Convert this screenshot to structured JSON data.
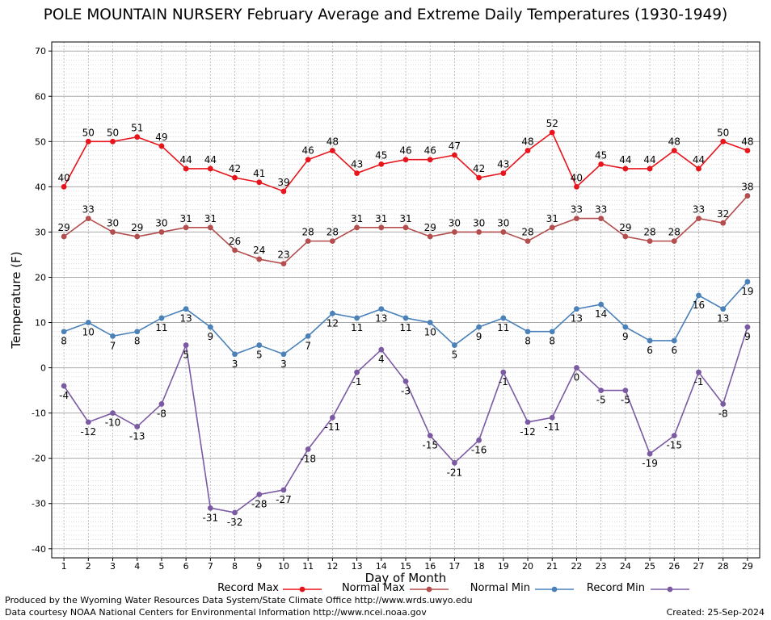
{
  "chart_data": {
    "type": "line",
    "title": "POLE MOUNTAIN NURSERY February Average and Extreme Daily Temperatures (1930-1949)",
    "xlabel": "Day of Month",
    "ylabel": "Temperature (F)",
    "x": [
      1,
      2,
      3,
      4,
      5,
      6,
      7,
      8,
      9,
      10,
      11,
      12,
      13,
      14,
      15,
      16,
      17,
      18,
      19,
      20,
      21,
      22,
      23,
      24,
      25,
      26,
      27,
      28,
      29
    ],
    "xlim": [
      0.5,
      29.5
    ],
    "ylim": [
      -42,
      72
    ],
    "yticks": [
      -40,
      -30,
      -20,
      -10,
      0,
      10,
      20,
      30,
      40,
      50,
      60,
      70
    ],
    "grid": true,
    "legend_position": "bottom",
    "series": [
      {
        "name": "Record Max",
        "color": "#e8141c",
        "label_pos": "above",
        "values": [
          40,
          50,
          50,
          51,
          49,
          44,
          44,
          42,
          41,
          39,
          46,
          48,
          43,
          45,
          46,
          46,
          47,
          42,
          43,
          48,
          52,
          40,
          45,
          44,
          44,
          48,
          44,
          50,
          48
        ]
      },
      {
        "name": "Normal Max",
        "color": "#b44d4d",
        "label_pos": "above",
        "values": [
          29,
          33,
          30,
          29,
          30,
          31,
          31,
          26,
          24,
          23,
          28,
          28,
          31,
          31,
          31,
          29,
          30,
          30,
          30,
          28,
          31,
          33,
          33,
          29,
          28,
          28,
          33,
          32,
          38
        ]
      },
      {
        "name": "Normal Min",
        "color": "#4a81b9",
        "label_pos": "below",
        "values": [
          8,
          10,
          7,
          8,
          11,
          13,
          9,
          3,
          5,
          3,
          7,
          12,
          11,
          13,
          11,
          10,
          5,
          9,
          11,
          8,
          8,
          13,
          14,
          9,
          6,
          6,
          16,
          13,
          19
        ]
      },
      {
        "name": "Record Min",
        "color": "#7b5aa3",
        "label_pos": "below",
        "values": [
          -4,
          -12,
          -10,
          -13,
          -8,
          5,
          -31,
          -32,
          -28,
          -27,
          -18,
          -11,
          -1,
          4,
          -3,
          -15,
          -21,
          -16,
          -1,
          -12,
          -11,
          0,
          -5,
          -5,
          -19,
          -15,
          -1,
          -8,
          9
        ]
      }
    ]
  },
  "footer": {
    "credit_line_1": "Produced by the Wyoming Water Resources Data System/State Climate Office http://www.wrds.uwyo.edu",
    "credit_line_2": "Data courtesy NOAA National Centers for Environmental Information http://www.ncei.noaa.gov",
    "created": "Created:  25-Sep-2024"
  }
}
